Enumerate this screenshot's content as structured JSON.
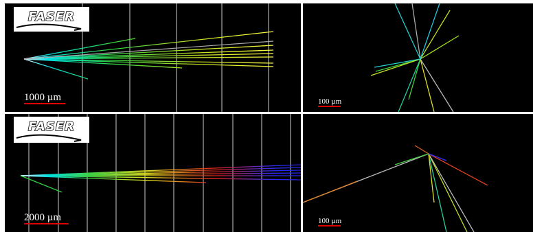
{
  "panels": [
    {
      "logo": "FASER",
      "scale_label": "1000 µm"
    },
    {
      "scale_label": "100 µm"
    },
    {
      "logo": "FASER",
      "scale_label": "2000 µm"
    },
    {
      "scale_label": "100 µm"
    }
  ]
}
